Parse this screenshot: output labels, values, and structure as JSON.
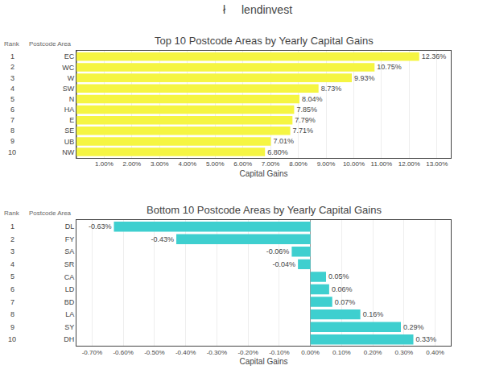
{
  "chart_data": [
    {
      "type": "bar",
      "orientation": "horizontal",
      "title": "Top 10 Postcode Areas by Yearly Capital Gains",
      "annotations": [
        "ł",
        "lendinvest",
        "Rank"
      ],
      "ylabel": "Postcode Area",
      "xlabel": "Capital Gains",
      "ranks": [
        1,
        2,
        3,
        4,
        5,
        6,
        7,
        8,
        9,
        10
      ],
      "categories": [
        "EC",
        "WC",
        "W",
        "SW",
        "N",
        "HA",
        "E",
        "SE",
        "UB",
        "NW"
      ],
      "values": [
        12.36,
        10.75,
        9.93,
        8.73,
        8.04,
        7.85,
        7.79,
        7.71,
        7.01,
        6.8
      ],
      "value_labels": [
        "12.36%",
        "10.75%",
        "9.93%",
        "8.73%",
        "8.04%",
        "7.85%",
        "7.79%",
        "7.71%",
        "7.01%",
        "6.80%"
      ],
      "data_labels": true,
      "color": "#f5f542",
      "xlim": [
        0,
        13.5
      ],
      "xticks": [
        {
          "value": 1,
          "label": "1.00%"
        },
        {
          "value": 2,
          "label": "2.00%"
        },
        {
          "value": 3,
          "label": "3.00%"
        },
        {
          "value": 4,
          "label": "4.00%"
        },
        {
          "value": 5,
          "label": "5.00%"
        },
        {
          "value": 6,
          "label": "6.00%"
        },
        {
          "value": 7,
          "label": "7.00%"
        },
        {
          "value": 8,
          "label": "8.00%"
        },
        {
          "value": 9,
          "label": "9.00%"
        },
        {
          "value": 10,
          "label": "10.00%"
        },
        {
          "value": 11,
          "label": "11.00%"
        },
        {
          "value": 12,
          "label": "12.00%"
        },
        {
          "value": 13,
          "label": "13.00%"
        }
      ],
      "grid": true
    },
    {
      "type": "bar",
      "orientation": "horizontal",
      "title": "Bottom 10 Postcode Areas by Yearly Capital Gains",
      "annotations": [
        "Rank"
      ],
      "ylabel": "Postcode Area",
      "xlabel": "Capital Gains",
      "ranks": [
        1,
        2,
        3,
        4,
        5,
        6,
        7,
        8,
        9,
        10
      ],
      "categories": [
        "DL",
        "FY",
        "SA",
        "SR",
        "CA",
        "LD",
        "BD",
        "LA",
        "SY",
        "DH"
      ],
      "values": [
        -0.63,
        -0.43,
        -0.06,
        -0.04,
        0.05,
        0.06,
        0.07,
        0.16,
        0.29,
        0.33
      ],
      "value_labels": [
        "-0.63%",
        "-0.43%",
        "-0.06%",
        "-0.04%",
        "0.05%",
        "0.06%",
        "0.07%",
        "0.16%",
        "0.29%",
        "0.33%"
      ],
      "data_labels": true,
      "color": "#3ecfcf",
      "xlim": [
        -0.75,
        0.45
      ],
      "xticks": [
        {
          "value": -0.7,
          "label": "-0.70%"
        },
        {
          "value": -0.6,
          "label": "-0.60%"
        },
        {
          "value": -0.5,
          "label": "-0.50%"
        },
        {
          "value": -0.4,
          "label": "-0.40%"
        },
        {
          "value": -0.3,
          "label": "-0.30%"
        },
        {
          "value": -0.2,
          "label": "-0.20%"
        },
        {
          "value": -0.1,
          "label": "-0.10%"
        },
        {
          "value": 0,
          "label": "0.00%"
        },
        {
          "value": 0.1,
          "label": "0.10%"
        },
        {
          "value": 0.2,
          "label": "0.20%"
        },
        {
          "value": 0.3,
          "label": "0.30%"
        },
        {
          "value": 0.4,
          "label": "0.40%"
        }
      ],
      "grid": true
    }
  ]
}
